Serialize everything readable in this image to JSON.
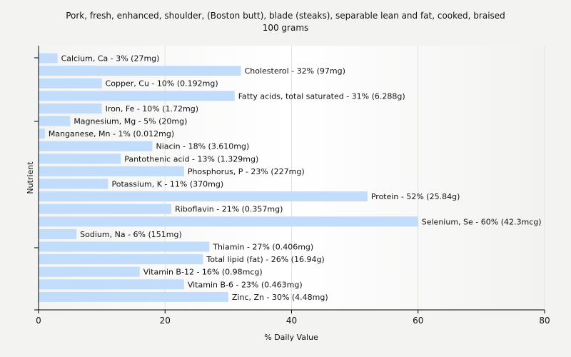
{
  "chart_data": {
    "type": "bar",
    "orientation": "horizontal",
    "title": "Pork, fresh, enhanced, shoulder, (Boston butt), blade (steaks), separable lean and fat, cooked, braised",
    "subtitle": "100 grams",
    "xlabel": "% Daily Value",
    "ylabel": "Nutrient",
    "xlim": [
      0,
      80
    ],
    "xticks": [
      "0",
      "20",
      "40",
      "60",
      "80"
    ],
    "grid": true,
    "bar_color": "#c2dcfb",
    "categories": [
      "Calcium, Ca",
      "Cholesterol",
      "Copper, Cu",
      "Fatty acids, total saturated",
      "Iron, Fe",
      "Magnesium, Mg",
      "Manganese, Mn",
      "Niacin",
      "Pantothenic acid",
      "Phosphorus, P",
      "Potassium, K",
      "Protein",
      "Riboflavin",
      "Selenium, Se",
      "Sodium, Na",
      "Thiamin",
      "Total lipid (fat)",
      "Vitamin B-12",
      "Vitamin B-6",
      "Zinc, Zn"
    ],
    "values": [
      3,
      32,
      10,
      31,
      10,
      5,
      1,
      18,
      13,
      23,
      11,
      52,
      21,
      60,
      6,
      27,
      26,
      16,
      23,
      30
    ],
    "labels": [
      "Calcium, Ca - 3% (27mg)",
      "Cholesterol - 32% (97mg)",
      "Copper, Cu - 10% (0.192mg)",
      "Fatty acids, total saturated - 31% (6.288g)",
      "Iron, Fe - 10% (1.72mg)",
      "Magnesium, Mg - 5% (20mg)",
      "Manganese, Mn - 1% (0.012mg)",
      "Niacin - 18% (3.610mg)",
      "Pantothenic acid - 13% (1.329mg)",
      "Phosphorus, P - 23% (227mg)",
      "Potassium, K - 11% (370mg)",
      "Protein - 52% (25.84g)",
      "Riboflavin - 21% (0.357mg)",
      "Selenium, Se - 60% (42.3mcg)",
      "Sodium, Na - 6% (151mg)",
      "Thiamin - 27% (0.406mg)",
      "Total lipid (fat) - 26% (16.94g)",
      "Vitamin B-12 - 16% (0.98mcg)",
      "Vitamin B-6 - 23% (0.463mg)",
      "Zinc, Zn - 30% (4.48mg)"
    ]
  }
}
